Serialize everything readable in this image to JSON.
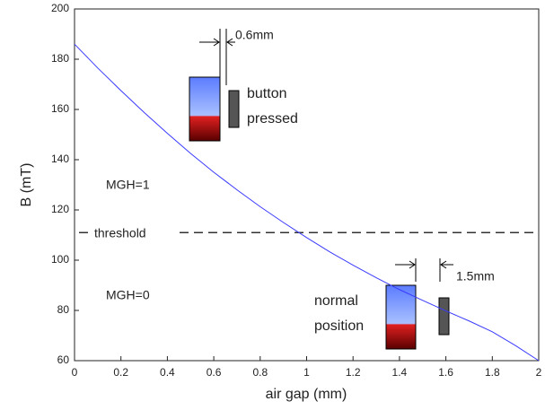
{
  "chart_data": {
    "type": "line",
    "x_label": "air gap (mm)",
    "y_label": "B (mT)",
    "x": [
      0,
      0.1,
      0.2,
      0.3,
      0.4,
      0.5,
      0.6,
      0.7,
      0.8,
      0.9,
      1.0,
      1.1,
      1.2,
      1.3,
      1.4,
      1.5,
      1.6,
      1.7,
      1.8,
      1.9,
      2.0
    ],
    "values": [
      186,
      176.5,
      167.5,
      158.8,
      150.5,
      142.5,
      135,
      128,
      121.3,
      115,
      109,
      103.3,
      98,
      93,
      88.3,
      84,
      79.8,
      75.8,
      71.5,
      66,
      60
    ],
    "color": "#3a3aff",
    "xlim": [
      0,
      2
    ],
    "xticks": [
      0,
      0.2,
      0.4,
      0.6,
      0.8,
      1,
      1.2,
      1.4,
      1.6,
      1.8,
      2
    ],
    "ylim": [
      60,
      200
    ],
    "yticks": [
      60,
      80,
      100,
      120,
      140,
      160,
      180,
      200
    ],
    "threshold": 111,
    "annotations": [
      "MGH=1",
      "MGH=0",
      "threshold",
      "0.6mm",
      "button",
      "pressed",
      "1.5mm",
      "normal",
      "position"
    ]
  }
}
